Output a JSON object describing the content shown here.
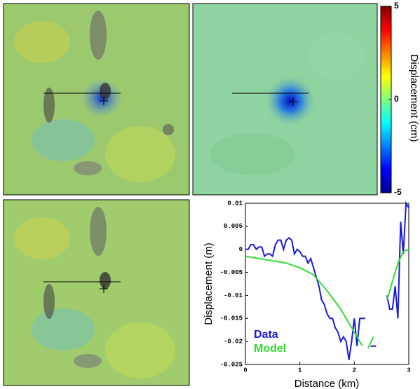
{
  "chart_data": [
    {
      "type": "colorbar",
      "label": "Displacement (cm)",
      "clim": [
        -5,
        5
      ],
      "ticks": [
        5,
        0,
        -5
      ]
    },
    {
      "type": "line",
      "xlabel": "Distance (km)",
      "ylabel": "Displacement (m)",
      "xlim": [
        0,
        3
      ],
      "xticks": [
        0,
        1,
        2,
        3
      ],
      "ylim": [
        -0.025,
        0.01
      ],
      "yticks": [
        0.01,
        0.005,
        0,
        -0.005,
        -0.01,
        -0.015,
        -0.02,
        -0.025
      ],
      "legend": "lower left",
      "series": [
        {
          "name": "Data",
          "color": "#1a1adc",
          "x": [
            0,
            0.05,
            0.1,
            0.15,
            0.2,
            0.25,
            0.3,
            0.35,
            0.4,
            0.45,
            0.5,
            0.55,
            0.6,
            0.65,
            0.7,
            0.75,
            0.8,
            0.85,
            0.9,
            0.95,
            1.0,
            1.05,
            1.1,
            1.15,
            1.2,
            1.25,
            1.3,
            1.35,
            1.4,
            1.45,
            1.5,
            1.55,
            1.6,
            1.65,
            1.7,
            1.75,
            1.8,
            1.85,
            1.9,
            1.95,
            2.0,
            2.05,
            2.1,
            2.15,
            2.2,
            2.25,
            2.3,
            2.4,
            2.5,
            2.6,
            2.65,
            2.7,
            2.75,
            2.8,
            2.85,
            2.9,
            2.95,
            3.0
          ],
          "values": [
            0,
            0,
            0.001,
            0.001,
            0,
            0.0005,
            0.0005,
            -0.0015,
            -0.001,
            -0.001,
            -0.0015,
            0.001,
            0.002,
            0.002,
            0,
            0.002,
            0.0025,
            0.002,
            -0.001,
            0,
            -0.0005,
            -0.0015,
            -0.0015,
            -0.003,
            -0.002,
            -0.004,
            -0.006,
            -0.008,
            -0.011,
            -0.012,
            -0.014,
            -0.015,
            -0.015,
            -0.017,
            -0.018,
            -0.02,
            -0.019,
            -0.02,
            -0.024,
            -0.02,
            -0.015,
            -0.021,
            -0.015,
            -0.015,
            -0.015,
            null,
            -0.021,
            -0.021,
            null,
            -0.01,
            -0.013,
            -0.013,
            -0.008,
            -0.015,
            0.006,
            -0.001,
            0.01,
            0.009
          ]
        },
        {
          "name": "Model",
          "color": "#33dd33",
          "x": [
            0,
            0.25,
            0.5,
            0.75,
            1.0,
            1.25,
            1.5,
            1.75,
            2.0,
            2.15,
            2.2,
            2.25,
            2.35,
            2.5,
            2.6,
            2.7,
            2.8,
            2.9,
            3.0
          ],
          "values": [
            -0.0015,
            -0.002,
            -0.0025,
            -0.003,
            -0.004,
            -0.0055,
            -0.009,
            -0.013,
            -0.018,
            -0.021,
            null,
            -0.0215,
            -0.019,
            null,
            -0.011,
            -0.007,
            -0.003,
            -0.0005,
            0
          ]
        }
      ]
    }
  ]
}
